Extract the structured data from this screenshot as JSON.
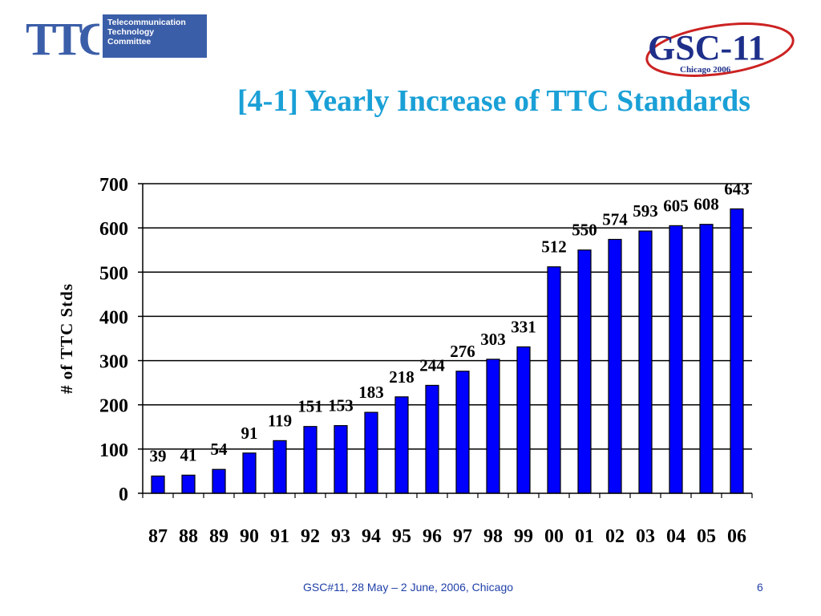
{
  "logos": {
    "ttc": {
      "letters": "TTC",
      "lines": [
        "Telecommunication",
        "Technology",
        "Committee"
      ],
      "color": "#3b5ea8"
    },
    "gsc": {
      "text": "GSC-11",
      "subtitle": "Chicago 2006",
      "color": "#1e2f8a",
      "swoosh_color": "#cc2222"
    }
  },
  "title": "[4-1] Yearly Increase of TTC Standards",
  "footer": "GSC#11, 28 May – 2 June, 2006, Chicago",
  "page_number": "6",
  "chart_data": {
    "type": "bar",
    "ylabel": "# of TTC Stds",
    "xlabel": "",
    "ylim": [
      0,
      700
    ],
    "yticks": [
      0,
      100,
      200,
      300,
      400,
      500,
      600,
      700
    ],
    "grid": true,
    "bar_color": "#0000ff",
    "categories": [
      "87",
      "88",
      "89",
      "90",
      "91",
      "92",
      "93",
      "94",
      "95",
      "96",
      "97",
      "98",
      "99",
      "00",
      "01",
      "02",
      "03",
      "04",
      "05",
      "06"
    ],
    "values": [
      39,
      41,
      54,
      91,
      119,
      151,
      153,
      183,
      218,
      244,
      276,
      303,
      331,
      512,
      550,
      574,
      593,
      605,
      608,
      643
    ]
  }
}
